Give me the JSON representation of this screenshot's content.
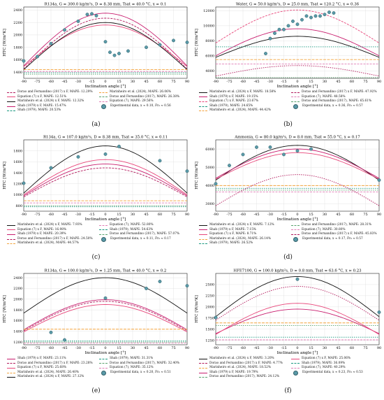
{
  "colors": {
    "Marinheiro (2024) x F": "#111111",
    "Equation (7) x F": "#e8467a",
    "Shah (1979) x F": "#c81d6e",
    "Dorao and Fernandino (2017) x F": "#b2185b",
    "Marinheiro (2024)": "#f3a33c",
    "Shah (1979)": "#1a9880",
    "Equation (7)": "#e07fb6",
    "Dorao and Fernandino (2017)": "#5aa36e",
    "Experimental": "#5a9aa8"
  },
  "chart_data": [
    {
      "id": "a",
      "type": "line",
      "caption": "(a)",
      "title": "R134a, G = 300.0 kg/m²s, D = 8.38 mm, Tsat = 40.0 °C, x ≈ 0.1",
      "xlabel": "Inclination angle [°]",
      "ylabel": "HTC [W/m²K]",
      "xlim": [
        -90,
        90
      ],
      "ylim": [
        1300,
        2450
      ],
      "xticks": [
        -90,
        -75,
        -60,
        -45,
        -30,
        -15,
        0,
        15,
        30,
        45,
        60,
        75,
        90
      ],
      "yticks": [
        1400,
        1600,
        1800,
        2000,
        2200,
        2400
      ],
      "series": [
        {
          "name": "Dorao and Fernandino (2017) x F, MAPE: 12.29%",
          "base": "Dorao and Fernandino (2017) x F",
          "dash": "3,1.5",
          "end": 1450,
          "peak": 2270
        },
        {
          "name": "Equation (7) x F, MAPE: 12.51%",
          "base": "Equation (7) x F",
          "dash": "",
          "end": 1490,
          "peak": 2160
        },
        {
          "name": "Marinheiro et al. (2024) x F, MAPE: 12.32%",
          "base": "Marinheiro (2024) x F",
          "dash": "",
          "end": 1440,
          "peak": 2200
        },
        {
          "name": "Shah (1979) x F, MAPE: 15.47%",
          "base": "Shah (1979) x F",
          "dash": "",
          "end": 1500,
          "peak": 2350
        },
        {
          "name": "Shah (1979), MAPE: 20.53%",
          "base": "Shah (1979)",
          "dash": "1.5,1.5",
          "end": 1390,
          "peak": 1390
        },
        {
          "name": "Marinheiro et al. (2024), MAPE: 26.06%",
          "base": "Marinheiro (2024)",
          "dash": "4,1.5",
          "end": 1440,
          "peak": 1440
        },
        {
          "name": "Dorao and Fernandino (2017), MAPE: 26.38%",
          "base": "Dorao and Fernandino (2017)",
          "dash": "1.5,1.5",
          "end": 1365,
          "peak": 1365
        },
        {
          "name": "Equation (7), MAPE: 29.56%",
          "base": "Equation (7)",
          "dash": "3,1.5",
          "end": 1410,
          "peak": 1410
        }
      ],
      "points_name": "Experimental data, x ≈ 0.10, Fr₀ ≈ 0.56",
      "points": [
        [
          -90,
          1580
        ],
        [
          -75,
          1650
        ],
        [
          -60,
          1860
        ],
        [
          -45,
          2080
        ],
        [
          -30,
          2220
        ],
        [
          -20,
          2330
        ],
        [
          -15,
          2340
        ],
        [
          -10,
          2310
        ],
        [
          0,
          1890
        ],
        [
          5,
          1720
        ],
        [
          10,
          1670
        ],
        [
          15,
          1700
        ],
        [
          25,
          1740
        ],
        [
          45,
          1800
        ],
        [
          60,
          1840
        ],
        [
          75,
          1910
        ],
        [
          90,
          1880
        ]
      ],
      "legend_cols": 2
    },
    {
      "id": "b",
      "type": "line",
      "caption": "(b)",
      "title": "Water, G = 50.0 kg/m²s, D = 25.0 mm, Tsat = 120.2 °C, x ≈ 0.36",
      "xlabel": "Inclination angle [°]",
      "ylabel": "HTC [W/m²K]",
      "xlim": [
        -90,
        90
      ],
      "ylim": [
        3000,
        12500
      ],
      "xticks": [
        -90,
        -75,
        -60,
        -45,
        -30,
        -15,
        0,
        15,
        30,
        45,
        60,
        75,
        90
      ],
      "yticks": [
        4000,
        6000,
        8000,
        10000,
        12000
      ],
      "series": [
        {
          "name": "Marinheiro et al. (2024) x F, MAPE: 18.58%",
          "base": "Marinheiro (2024) x F",
          "dash": "",
          "end": 5800,
          "peak": 8600
        },
        {
          "name": "Shah (1979) x F, MAPE: 19.15%",
          "base": "Shah (1979) x F",
          "dash": "",
          "end": 6000,
          "peak": 9600
        },
        {
          "name": "Equation (7) x F, MAPE: 23.67%",
          "base": "Equation (7) x F",
          "dash": "3,1.5",
          "end": 7700,
          "peak": 12100
        },
        {
          "name": "Shah (1979), MAPE: 24.65%",
          "base": "Shah (1979)",
          "dash": "1.5,1.5",
          "end": 7200,
          "peak": 7200
        },
        {
          "name": "Marinheiro et al. (2024), MAPE: 44.42%",
          "base": "Marinheiro (2024)",
          "dash": "4,1.5",
          "end": 5500,
          "peak": 5500
        },
        {
          "name": "Dorao and Fernandino (2017) x F, MAPE: 47.92%",
          "base": "Dorao and Fernandino (2017) x F",
          "dash": "1.5,1.5",
          "end": 3300,
          "peak": 4700
        },
        {
          "name": "Equation (7), MAPE: 48.58%",
          "base": "Equation (7)",
          "dash": "3,1.5",
          "end": 4900,
          "peak": 4900
        },
        {
          "name": "Dorao and Fernandino (2017), MAPE: 65.61%",
          "base": "Dorao and Fernandino (2017)",
          "dash": "1.5,1.5",
          "end": 3100,
          "peak": 3100
        }
      ],
      "points_name": "Experimental data, x ≈ 0.36, Fr₀ ≈ 0.57",
      "points": [
        [
          -35,
          6300
        ],
        [
          -30,
          8300
        ],
        [
          -25,
          9000
        ],
        [
          -20,
          9500
        ],
        [
          -15,
          9500
        ],
        [
          -10,
          10000
        ],
        [
          -5,
          10600
        ],
        [
          0,
          10200
        ],
        [
          5,
          10800
        ],
        [
          10,
          11300
        ],
        [
          15,
          11100
        ],
        [
          20,
          11300
        ],
        [
          25,
          11300
        ],
        [
          30,
          11500
        ],
        [
          35,
          11800
        ],
        [
          40,
          11700
        ]
      ],
      "legend_cols": 2
    },
    {
      "id": "c",
      "type": "line",
      "caption": "(c)",
      "title": "R134a, G = 107.0 kg/m²s, D = 8.38 mm, Tsat = 35.0 °C, x ≈ 0.11",
      "xlabel": "Inclination angle [°]",
      "ylabel": "HTC [W/m²K]",
      "xlim": [
        -90,
        90
      ],
      "ylim": [
        700,
        2000
      ],
      "xticks": [
        -90,
        -75,
        -60,
        -45,
        -30,
        -15,
        0,
        15,
        30,
        45,
        60,
        75,
        90
      ],
      "yticks": [
        800,
        1000,
        1200,
        1400,
        1600,
        1800
      ],
      "series": [
        {
          "name": "Marinheiro et al. (2024) x F, MAPE: 7.93%",
          "base": "Marinheiro (2024) x F",
          "dash": "",
          "end": 1030,
          "peak": 1890
        },
        {
          "name": "Equation (7) x F, MAPE: 16.98%",
          "base": "Equation (7) x F",
          "dash": "",
          "end": 1000,
          "peak": 1640
        },
        {
          "name": "Shah (1979) x F, MAPE: 20.39%",
          "base": "Shah (1979) x F",
          "dash": "",
          "end": 980,
          "peak": 1560
        },
        {
          "name": "Dorao and Fernandino (2017) x F, MAPE: 24.50%",
          "base": "Dorao and Fernandino (2017) x F",
          "dash": "3,1.5",
          "end": 960,
          "peak": 1490
        },
        {
          "name": "Marinheiro et al. (2024), MAPE: 44.57%",
          "base": "Marinheiro (2024)",
          "dash": "4,1.5",
          "end": 890,
          "peak": 890
        },
        {
          "name": "Equation (7), MAPE: 52.80%",
          "base": "Equation (7)",
          "dash": "3,1.5",
          "end": 850,
          "peak": 850
        },
        {
          "name": "Shah (1979), MAPE: 54.63%",
          "base": "Shah (1979)",
          "dash": "1.5,1.5",
          "end": 780,
          "peak": 780
        },
        {
          "name": "Dorao and Fernandino (2017), MAPE: 57.07%",
          "base": "Dorao and Fernandino (2017)",
          "dash": "1.5,1.5",
          "end": 800,
          "peak": 800
        }
      ],
      "points_name": "Experimental data, x ≈ 0.11, Fr₀ ≈ 0.17",
      "points": [
        [
          -90,
          1210
        ],
        [
          -60,
          1490
        ],
        [
          -30,
          1690
        ],
        [
          0,
          1740
        ],
        [
          15,
          1880
        ],
        [
          60,
          1620
        ],
        [
          90,
          1430
        ]
      ],
      "legend_cols": 2
    },
    {
      "id": "d",
      "type": "line",
      "caption": "(d)",
      "title": "Ammonia, G = 80.0 kg/m²s, D = 8.0 mm, Tsat = 55.0 °C, x ≈ 0.17",
      "xlabel": "Inclination angle [°]",
      "ylabel": "HTC [W/m²K]",
      "xlim": [
        -90,
        90
      ],
      "ylim": [
        2600,
        6500
      ],
      "xticks": [
        -90,
        -75,
        -60,
        -45,
        -30,
        -15,
        0,
        15,
        30,
        45,
        60,
        75,
        90
      ],
      "yticks": [
        3000,
        4000,
        5000,
        6000
      ],
      "series": [
        {
          "name": "Marinheiro et al. (2024) x F, MAPE: 7.12%",
          "base": "Marinheiro (2024) x F",
          "dash": "",
          "end": 4300,
          "peak": 6200
        },
        {
          "name": "Shah (1979) x F, MAPE: 7.15%",
          "base": "Shah (1979) x F",
          "dash": "",
          "end": 4400,
          "peak": 6000
        },
        {
          "name": "Equation (7) x F, MAPE: 8.71%",
          "base": "Equation (7) x F",
          "dash": "",
          "end": 4350,
          "peak": 5800
        },
        {
          "name": "Marinheiro et al. (2024), MAPE: 26.14%",
          "base": "Marinheiro (2024)",
          "dash": "4,1.5",
          "end": 4000,
          "peak": 4000
        },
        {
          "name": "Shah (1979), MAPE: 26.52%",
          "base": "Shah (1979)",
          "dash": "1.5,1.5",
          "end": 3850,
          "peak": 3850
        },
        {
          "name": "Dorao and Fernandino (2017), MAPE: 28.31%",
          "base": "Dorao and Fernandino (2017)",
          "dash": "1.5,1.5",
          "end": 3750,
          "peak": 3750
        },
        {
          "name": "Equation (7), MAPE: 30.80%",
          "base": "Equation (7)",
          "dash": "3,1.5",
          "end": 3650,
          "peak": 3650
        },
        {
          "name": "Dorao and Fernandino (2017) x F, MAPE: 45.83%",
          "base": "Dorao and Fernandino (2017) x F",
          "dash": "1.5,1.5",
          "end": 2900,
          "peak": 4600
        }
      ],
      "points_name": "Experimental data, x ≈ 0.17, Fr₀ ≈ 0.57",
      "points": [
        [
          -90,
          4100
        ],
        [
          -75,
          5100
        ],
        [
          -60,
          5700
        ],
        [
          -45,
          6100
        ],
        [
          -30,
          6100
        ],
        [
          -15,
          5700
        ],
        [
          0,
          5900
        ],
        [
          15,
          6000
        ],
        [
          90,
          4300
        ]
      ],
      "legend_cols": 2
    },
    {
      "id": "e",
      "type": "line",
      "caption": "(e)",
      "title": "R134a, G = 100.0 kg/m²s, D = 1.25 mm, Tsat = 40.0 °C, x ≈ 0.2",
      "xlabel": "Inclination angle [°]",
      "ylabel": "HTC [W/m²K]",
      "xlim": [
        -90,
        90
      ],
      "ylim": [
        1150,
        2480
      ],
      "xticks": [
        -90,
        -75,
        -60,
        -45,
        -30,
        -15,
        0,
        15,
        30,
        45,
        60,
        75,
        90
      ],
      "yticks": [
        1200,
        1400,
        1600,
        1800,
        2000,
        2200,
        2400
      ],
      "series": [
        {
          "name": "Shah (1979) x F, MAPE: 23.11%",
          "base": "Shah (1979) x F",
          "dash": "",
          "end": 1430,
          "peak": 1990
        },
        {
          "name": "Dorao and Fernandino (2017) x F, MAPE: 23.28%",
          "base": "Dorao and Fernandino (2017) x F",
          "dash": "3,1.5",
          "end": 1410,
          "peak": 1960
        },
        {
          "name": "Equation (7) x F, MAPE: 25.68%",
          "base": "Equation (7) x F",
          "dash": "",
          "end": 1390,
          "peak": 1900
        },
        {
          "name": "Marinheiro et al. (2024), MAPE: 26.40%",
          "base": "Marinheiro (2024)",
          "dash": "4,1.5",
          "end": 1440,
          "peak": 1440
        },
        {
          "name": "Marinheiro et al. (2024) x F, MAPE: 27.12%",
          "base": "Marinheiro (2024) x F",
          "dash": "",
          "end": 1740,
          "peak": 2400
        },
        {
          "name": "Shah (1979), MAPE: 31.31%",
          "base": "Shah (1979)",
          "dash": "1.5,1.5",
          "end": 1220,
          "peak": 1220
        },
        {
          "name": "Dorao and Fernandino (2017), MAPE: 32.40%",
          "base": "Dorao and Fernandino (2017)",
          "dash": "1.5,1.5",
          "end": 1200,
          "peak": 1200
        },
        {
          "name": "Equation (7), MAPE: 35.12%",
          "base": "Equation (7)",
          "dash": "3,1.5",
          "end": 1180,
          "peak": 1180
        }
      ],
      "points_name": "Experimental data, x ≈ 0.20, Fr₀ ≈ 0.51",
      "points": [
        [
          -60,
          1380
        ],
        [
          -45,
          1240
        ],
        [
          0,
          2020
        ],
        [
          45,
          2200
        ],
        [
          60,
          2330
        ],
        [
          90,
          2250
        ]
      ],
      "legend_cols": 2
    },
    {
      "id": "f",
      "type": "line",
      "caption": "(f)",
      "title": "HFE7100, G = 100.0 kg/m²s, D = 0.8 mm, Tsat = 63.6 °C, x ≈ 0.23",
      "xlabel": "Inclination angle [°]",
      "ylabel": "HTC [W/m²K]",
      "xlim": [
        -90,
        90
      ],
      "ylim": [
        1150,
        2750
      ],
      "xticks": [
        -90,
        -75,
        -60,
        -45,
        -30,
        -15,
        0,
        15,
        30,
        45,
        60,
        75,
        90
      ],
      "yticks": [
        1250,
        1500,
        1750,
        2000,
        2250,
        2500
      ],
      "series": [
        {
          "name": "Marinheiro et al. (2024) x F, MAPE: 3.20%",
          "base": "Marinheiro (2024) x F",
          "dash": "",
          "end": 1780,
          "peak": 2680
        },
        {
          "name": "Dorao and Fernandino (2017) x F, MAPE: 4.77%",
          "base": "Dorao and Fernandino (2017) x F",
          "dash": "1.5,1.5",
          "end": 1700,
          "peak": 2460
        },
        {
          "name": "Marinheiro et al. (2024), MAPE: 18.52%",
          "base": "Marinheiro (2024)",
          "dash": "4,1.5",
          "end": 1640,
          "peak": 1640
        },
        {
          "name": "Shah (1979) x F, MAPE: 19.79%",
          "base": "Shah (1979) x F",
          "dash": "",
          "end": 1400,
          "peak": 1950
        },
        {
          "name": "Dorao and Fernandino (2017), MAPE: 24.12%",
          "base": "Dorao and Fernandino (2017)",
          "dash": "1.5,1.5",
          "end": 1580,
          "peak": 1580
        },
        {
          "name": "Equation (7) x F, MAPE: 25.06%",
          "base": "Equation (7) x F",
          "dash": "",
          "end": 1380,
          "peak": 2080
        },
        {
          "name": "Shah (1979), MAPE: 36.09%",
          "base": "Shah (1979)",
          "dash": "1.5,1.5",
          "end": 1320,
          "peak": 1320
        },
        {
          "name": "Equation (7), MAPE: 40.29%",
          "base": "Equation (7)",
          "dash": "3,1.5",
          "end": 1260,
          "peak": 1260
        }
      ],
      "points_name": "Experimental data, x ≈ 0.23, Fr₀ ≈ 0.53",
      "points": [
        [
          -90,
          1760
        ],
        [
          0,
          2620
        ],
        [
          90,
          1880
        ]
      ],
      "legend_cols": 2
    }
  ]
}
